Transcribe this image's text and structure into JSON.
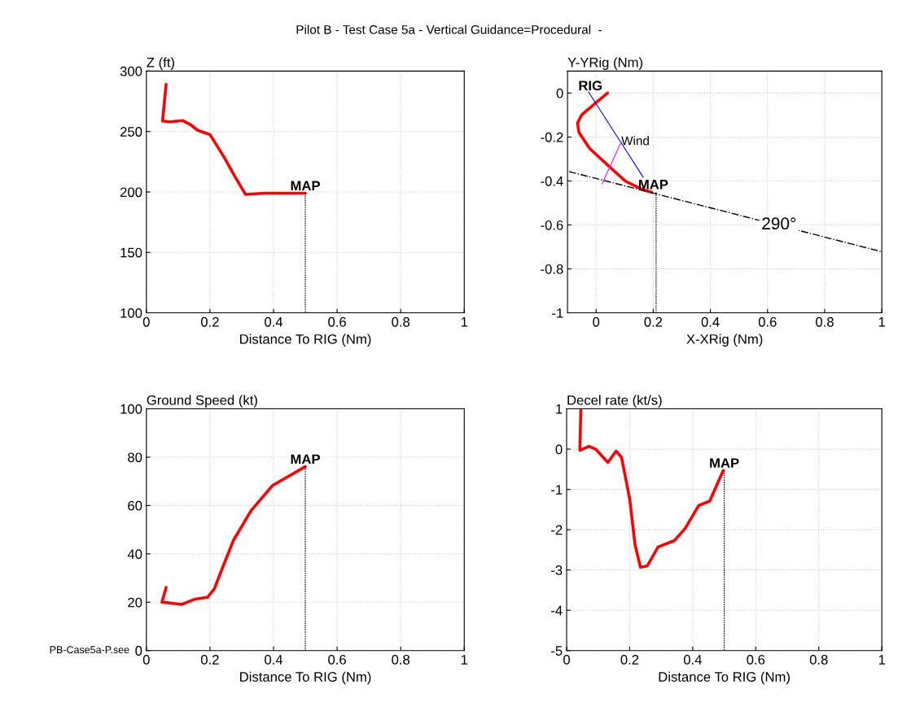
{
  "chart_data": [
    {
      "type": "line",
      "title": "Pilot B - Test Case 5a - Vertical Guidance=Procedural  -",
      "ylabel": "Z (ft)",
      "xlabel": "Distance To RIG (Nm)",
      "xlim": [
        0,
        1
      ],
      "xticks": [
        0,
        0.2,
        0.4,
        0.6,
        0.8,
        1
      ],
      "ylim": [
        100,
        300
      ],
      "yticks": [
        100,
        150,
        200,
        250,
        300
      ],
      "grid": true,
      "legend": false,
      "series": [
        {
          "color": "#ff0000",
          "line_style": "solid",
          "x": [
            0.062,
            0.051,
            0.073,
            0.115,
            0.137,
            0.162,
            0.2,
            0.244,
            0.278,
            0.312,
            0.372,
            0.5
          ],
          "values": [
            289,
            258.7,
            258,
            259,
            256,
            251,
            247.5,
            229,
            213,
            198,
            199,
            199
          ]
        },
        {
          "color": "#000000",
          "line_style": "dotted",
          "x": [
            0.5,
            0.5
          ],
          "values": [
            199,
            100
          ]
        }
      ],
      "annotations": [
        {
          "text": "MAP",
          "x": 0.5,
          "y": 199
        }
      ]
    },
    {
      "type": "line",
      "ylabel": "Y-YRig (Nm)",
      "xlabel": "X-XRig (Nm)",
      "xlim": [
        -0.1,
        1
      ],
      "xticks": [
        0,
        0.2,
        0.4,
        0.6,
        0.8,
        1
      ],
      "ylim": [
        -1,
        0.1
      ],
      "yticks": [
        -1,
        -0.8,
        -0.6,
        -0.4,
        -0.2,
        0
      ],
      "grid": true,
      "legend": false,
      "series": [
        {
          "color": "#ff0000",
          "line_style": "solid",
          "x": [
            0.04,
            0.0,
            -0.05,
            -0.065,
            -0.06,
            -0.022,
            0.045,
            0.103,
            0.16,
            0.194
          ],
          "values": [
            0.0,
            -0.043,
            -0.099,
            -0.136,
            -0.179,
            -0.253,
            -0.333,
            -0.401,
            -0.438,
            -0.451
          ]
        },
        {
          "color": "#0000ff",
          "line_style": "solid",
          "x": [
            -0.027,
            0.165
          ],
          "values": [
            0.006,
            -0.383
          ]
        },
        {
          "color": "#ff00ff",
          "line_style": "solid",
          "x": [
            0.088,
            0.021
          ],
          "values": [
            -0.222,
            -0.413
          ]
        },
        {
          "color": "#000000",
          "line_style": "dashdot",
          "x": [
            -0.095,
            1.0
          ],
          "values": [
            -0.357,
            -0.722
          ]
        },
        {
          "color": "#000000",
          "line_style": "dotted",
          "x": [
            0.21,
            0.21
          ],
          "values": [
            -0.451,
            -1
          ]
        }
      ],
      "annotations": [
        {
          "text": "RIG",
          "x": -0.02,
          "y": 0.0
        },
        {
          "text": "MAP",
          "x": 0.2,
          "y": -0.45
        },
        {
          "text": "Wind",
          "x": 0.088,
          "y": -0.222
        },
        {
          "text": "290°",
          "x": 0.64,
          "y": -0.6
        }
      ]
    },
    {
      "type": "line",
      "ylabel": "Ground Speed (kt)",
      "xlabel": "Distance To RIG (Nm)",
      "xlim": [
        0,
        1
      ],
      "xticks": [
        0,
        0.2,
        0.4,
        0.6,
        0.8,
        1
      ],
      "ylim": [
        0,
        100
      ],
      "yticks": [
        0,
        20,
        40,
        60,
        80,
        100
      ],
      "grid": true,
      "legend": false,
      "series": [
        {
          "color": "#ff0000",
          "line_style": "solid",
          "x": [
            0.062,
            0.049,
            0.073,
            0.111,
            0.154,
            0.192,
            0.214,
            0.24,
            0.274,
            0.329,
            0.397,
            0.5
          ],
          "values": [
            26.1,
            20,
            19.7,
            19.1,
            21.3,
            22,
            25.6,
            34.4,
            45.6,
            57.8,
            68.3,
            76.1
          ]
        },
        {
          "color": "#000000",
          "line_style": "dotted",
          "x": [
            0.5,
            0.5
          ],
          "values": [
            76.1,
            0
          ]
        }
      ],
      "annotations": [
        {
          "text": "MAP",
          "x": 0.5,
          "y": 76.1
        },
        "PB-Case5a-P.see"
      ]
    },
    {
      "type": "line",
      "ylabel": "Decel rate (kt/s)",
      "xlabel": "Distance To RIG (Nm)",
      "xlim": [
        0,
        1
      ],
      "xticks": [
        0,
        0.2,
        0.4,
        0.6,
        0.8,
        1
      ],
      "ylim": [
        -5,
        1
      ],
      "yticks": [
        -5,
        -4,
        -3,
        -2,
        -1,
        0,
        1
      ],
      "grid": true,
      "legend": false,
      "series": [
        {
          "color": "#ff0000",
          "line_style": "solid",
          "x": [
            0.045,
            0.042,
            0.071,
            0.092,
            0.131,
            0.157,
            0.174,
            0.2,
            0.217,
            0.234,
            0.256,
            0.29,
            0.342,
            0.376,
            0.419,
            0.454,
            0.497
          ],
          "values": [
            0.97,
            -0.03,
            0.07,
            0.0,
            -0.33,
            -0.05,
            -0.2,
            -1.23,
            -2.37,
            -2.93,
            -2.9,
            -2.43,
            -2.27,
            -1.97,
            -1.4,
            -1.29,
            -0.53
          ]
        },
        {
          "color": "#000000",
          "line_style": "dotted",
          "x": [
            0.5,
            0.5
          ],
          "values": [
            -0.53,
            -5
          ]
        }
      ],
      "annotations": [
        {
          "text": "MAP",
          "x": 0.5,
          "y": -0.53
        }
      ]
    }
  ]
}
